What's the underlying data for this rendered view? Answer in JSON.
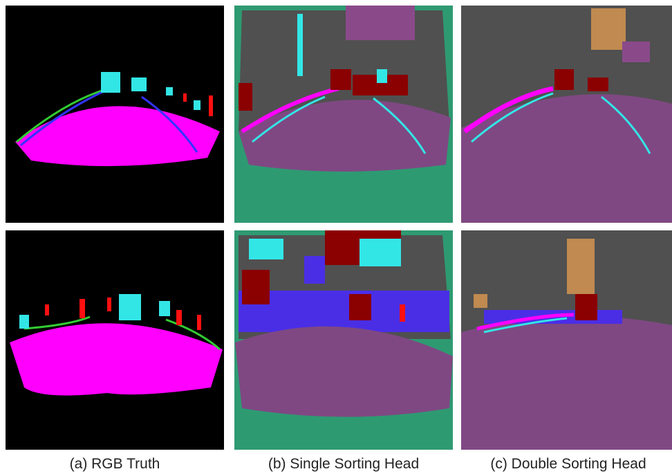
{
  "captions": [
    "(a) RGB Truth",
    "(b) Single Sorting Head",
    "(c) Double Sorting Head"
  ]
}
